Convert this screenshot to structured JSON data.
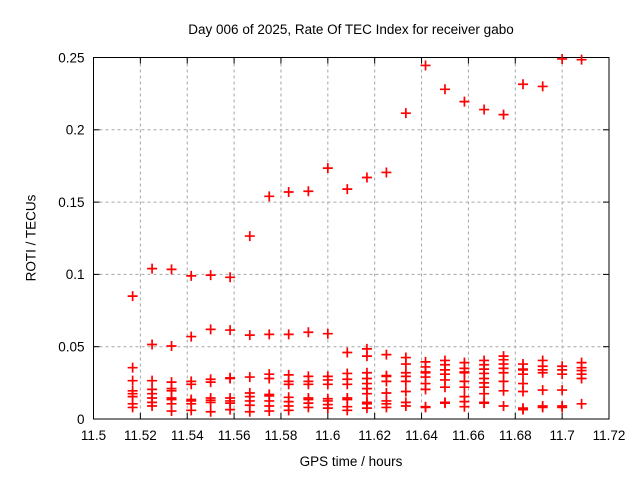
{
  "window": {
    "background": "#ffffff"
  },
  "chart_data": {
    "type": "scatter",
    "title": "Day 006 of 2025, Rate Of TEC Index for receiver gabo",
    "xlabel": "GPS time / hours",
    "ylabel": "ROTI / TECUs",
    "xlim": [
      11.5,
      11.72
    ],
    "ylim": [
      0,
      0.25
    ],
    "xticks": [
      11.5,
      11.52,
      11.54,
      11.56,
      11.58,
      11.6,
      11.62,
      11.64,
      11.66,
      11.68,
      11.7,
      11.72
    ],
    "xtick_labels": [
      "11.5",
      "11.52",
      "11.54",
      "11.56",
      "11.58",
      "11.6",
      "11.62",
      "11.64",
      "11.66",
      "11.68",
      "11.7",
      "11.72"
    ],
    "yticks": [
      0,
      0.05,
      0.1,
      0.15,
      0.2,
      0.25
    ],
    "ytick_labels": [
      "0",
      "0.05",
      "0.1",
      "0.15",
      "0.2",
      "0.25"
    ],
    "grid": true,
    "grid_style": "dashed",
    "legend": "none",
    "marker": "plus",
    "marker_color": "#ff0000",
    "grid_color": "#a6a6a6",
    "axis_color": "#000000",
    "points": [
      [
        11.5167,
        0.085
      ],
      [
        11.525,
        0.104
      ],
      [
        11.5333,
        0.1035
      ],
      [
        11.5417,
        0.099
      ],
      [
        11.55,
        0.0995
      ],
      [
        11.5583,
        0.098
      ],
      [
        11.5667,
        0.1265
      ],
      [
        11.575,
        0.154
      ],
      [
        11.5833,
        0.157
      ],
      [
        11.5917,
        0.1575
      ],
      [
        11.6,
        0.1735
      ],
      [
        11.6083,
        0.159
      ],
      [
        11.6167,
        0.167
      ],
      [
        11.625,
        0.1705
      ],
      [
        11.6333,
        0.2115
      ],
      [
        11.6417,
        0.2445
      ],
      [
        11.65,
        0.228
      ],
      [
        11.6583,
        0.2195
      ],
      [
        11.6667,
        0.214
      ],
      [
        11.675,
        0.2105
      ],
      [
        11.6833,
        0.2315
      ],
      [
        11.6917,
        0.23
      ],
      [
        11.7,
        0.249
      ],
      [
        11.7083,
        0.2485
      ],
      [
        11.525,
        0.0515
      ],
      [
        11.5333,
        0.0505
      ],
      [
        11.5417,
        0.057
      ],
      [
        11.55,
        0.062
      ],
      [
        11.5583,
        0.0615
      ],
      [
        11.5667,
        0.058
      ],
      [
        11.575,
        0.0585
      ],
      [
        11.5833,
        0.0585
      ],
      [
        11.5917,
        0.06
      ],
      [
        11.6,
        0.059
      ],
      [
        11.6083,
        0.046
      ],
      [
        11.6167,
        0.0485
      ],
      [
        11.625,
        0.0445
      ],
      [
        11.6333,
        0.0425
      ],
      [
        11.5167,
        0.0355
      ],
      [
        11.5167,
        0.0265
      ],
      [
        11.5167,
        0.0195
      ],
      [
        11.5167,
        0.0175
      ],
      [
        11.5167,
        0.0155
      ],
      [
        11.5167,
        0.0105
      ],
      [
        11.5167,
        0.008
      ],
      [
        11.525,
        0.0265
      ],
      [
        11.525,
        0.0205
      ],
      [
        11.525,
        0.0175
      ],
      [
        11.525,
        0.0145
      ],
      [
        11.525,
        0.0115
      ],
      [
        11.525,
        0.009
      ],
      [
        11.5333,
        0.0255
      ],
      [
        11.5333,
        0.021
      ],
      [
        11.5333,
        0.0195
      ],
      [
        11.5333,
        0.0145
      ],
      [
        11.5333,
        0.0135
      ],
      [
        11.5333,
        0.0105
      ],
      [
        11.5333,
        0.0055
      ],
      [
        11.5417,
        0.026
      ],
      [
        11.5417,
        0.024
      ],
      [
        11.5417,
        0.0135
      ],
      [
        11.5417,
        0.0125
      ],
      [
        11.5417,
        0.0105
      ],
      [
        11.5417,
        0.006
      ],
      [
        11.55,
        0.0275
      ],
      [
        11.55,
        0.0255
      ],
      [
        11.55,
        0.0145
      ],
      [
        11.55,
        0.013
      ],
      [
        11.55,
        0.0115
      ],
      [
        11.55,
        0.005
      ],
      [
        11.5583,
        0.0285
      ],
      [
        11.5583,
        0.028
      ],
      [
        11.5583,
        0.0145
      ],
      [
        11.5583,
        0.0125
      ],
      [
        11.5583,
        0.011
      ],
      [
        11.5583,
        0.0065
      ],
      [
        11.5667,
        0.029
      ],
      [
        11.5667,
        0.018
      ],
      [
        11.5667,
        0.0155
      ],
      [
        11.5667,
        0.0125
      ],
      [
        11.5667,
        0.0095
      ],
      [
        11.5667,
        0.005
      ],
      [
        11.575,
        0.031
      ],
      [
        11.575,
        0.028
      ],
      [
        11.575,
        0.017
      ],
      [
        11.575,
        0.016
      ],
      [
        11.575,
        0.0125
      ],
      [
        11.575,
        0.009
      ],
      [
        11.575,
        0.0055
      ],
      [
        11.5833,
        0.0305
      ],
      [
        11.5833,
        0.026
      ],
      [
        11.5833,
        0.024
      ],
      [
        11.5833,
        0.015
      ],
      [
        11.5833,
        0.012
      ],
      [
        11.5833,
        0.009
      ],
      [
        11.5833,
        0.006
      ],
      [
        11.5917,
        0.0295
      ],
      [
        11.5917,
        0.026
      ],
      [
        11.5917,
        0.024
      ],
      [
        11.5917,
        0.0145
      ],
      [
        11.5917,
        0.0135
      ],
      [
        11.5917,
        0.011
      ],
      [
        11.5917,
        0.008
      ],
      [
        11.6,
        0.0295
      ],
      [
        11.6,
        0.027
      ],
      [
        11.6,
        0.024
      ],
      [
        11.6,
        0.014
      ],
      [
        11.6,
        0.0125
      ],
      [
        11.6,
        0.01
      ],
      [
        11.6,
        0.0075
      ],
      [
        11.6083,
        0.0315
      ],
      [
        11.6083,
        0.0275
      ],
      [
        11.6083,
        0.024
      ],
      [
        11.6083,
        0.0145
      ],
      [
        11.6083,
        0.0135
      ],
      [
        11.6083,
        0.0085
      ],
      [
        11.6083,
        0.006
      ],
      [
        11.6167,
        0.0435
      ],
      [
        11.6167,
        0.032
      ],
      [
        11.6167,
        0.028
      ],
      [
        11.6167,
        0.0245
      ],
      [
        11.6167,
        0.021
      ],
      [
        11.6167,
        0.0175
      ],
      [
        11.6167,
        0.0115
      ],
      [
        11.6167,
        0.0105
      ],
      [
        11.6167,
        0.0075
      ],
      [
        11.625,
        0.03
      ],
      [
        11.625,
        0.0295
      ],
      [
        11.625,
        0.026
      ],
      [
        11.625,
        0.018
      ],
      [
        11.625,
        0.0125
      ],
      [
        11.625,
        0.0105
      ],
      [
        11.625,
        0.008
      ],
      [
        11.6333,
        0.038
      ],
      [
        11.6333,
        0.032
      ],
      [
        11.6333,
        0.0295
      ],
      [
        11.6333,
        0.026
      ],
      [
        11.6333,
        0.019
      ],
      [
        11.6333,
        0.0115
      ],
      [
        11.6333,
        0.009
      ],
      [
        11.6417,
        0.0395
      ],
      [
        11.6417,
        0.036
      ],
      [
        11.6417,
        0.0325
      ],
      [
        11.6417,
        0.032
      ],
      [
        11.6417,
        0.029
      ],
      [
        11.6417,
        0.0245
      ],
      [
        11.6417,
        0.0205
      ],
      [
        11.6417,
        0.0085
      ],
      [
        11.6417,
        0.008
      ],
      [
        11.65,
        0.0405
      ],
      [
        11.65,
        0.0375
      ],
      [
        11.65,
        0.034
      ],
      [
        11.65,
        0.031
      ],
      [
        11.65,
        0.027
      ],
      [
        11.65,
        0.022
      ],
      [
        11.65,
        0.0115
      ],
      [
        11.65,
        0.011
      ],
      [
        11.6583,
        0.039
      ],
      [
        11.6583,
        0.035
      ],
      [
        11.6583,
        0.0325
      ],
      [
        11.6583,
        0.032
      ],
      [
        11.6583,
        0.026
      ],
      [
        11.6583,
        0.022
      ],
      [
        11.6583,
        0.0155
      ],
      [
        11.6583,
        0.012
      ],
      [
        11.6583,
        0.0085
      ],
      [
        11.6667,
        0.0405
      ],
      [
        11.6667,
        0.0375
      ],
      [
        11.6667,
        0.0345
      ],
      [
        11.6667,
        0.0315
      ],
      [
        11.6667,
        0.028
      ],
      [
        11.6667,
        0.025
      ],
      [
        11.6667,
        0.022
      ],
      [
        11.6667,
        0.0175
      ],
      [
        11.6667,
        0.0115
      ],
      [
        11.6667,
        0.011
      ],
      [
        11.675,
        0.0435
      ],
      [
        11.675,
        0.041
      ],
      [
        11.675,
        0.038
      ],
      [
        11.675,
        0.035
      ],
      [
        11.675,
        0.032
      ],
      [
        11.675,
        0.026
      ],
      [
        11.675,
        0.0195
      ],
      [
        11.675,
        0.009
      ],
      [
        11.6833,
        0.038
      ],
      [
        11.6833,
        0.0345
      ],
      [
        11.6833,
        0.034
      ],
      [
        11.6833,
        0.031
      ],
      [
        11.6833,
        0.0245
      ],
      [
        11.6833,
        0.019
      ],
      [
        11.6833,
        0.0075
      ],
      [
        11.6833,
        0.0065
      ],
      [
        11.6917,
        0.0405
      ],
      [
        11.6917,
        0.0365
      ],
      [
        11.6917,
        0.034
      ],
      [
        11.6917,
        0.032
      ],
      [
        11.6917,
        0.02
      ],
      [
        11.6917,
        0.009
      ],
      [
        11.6917,
        0.008
      ],
      [
        11.7,
        0.0365
      ],
      [
        11.7,
        0.034
      ],
      [
        11.7,
        0.031
      ],
      [
        11.7,
        0.02
      ],
      [
        11.7,
        0.009
      ],
      [
        11.7,
        0.008
      ],
      [
        11.7083,
        0.039
      ],
      [
        11.7083,
        0.0355
      ],
      [
        11.7083,
        0.0335
      ],
      [
        11.7083,
        0.031
      ],
      [
        11.7083,
        0.028
      ],
      [
        11.7083,
        0.0105
      ]
    ]
  }
}
